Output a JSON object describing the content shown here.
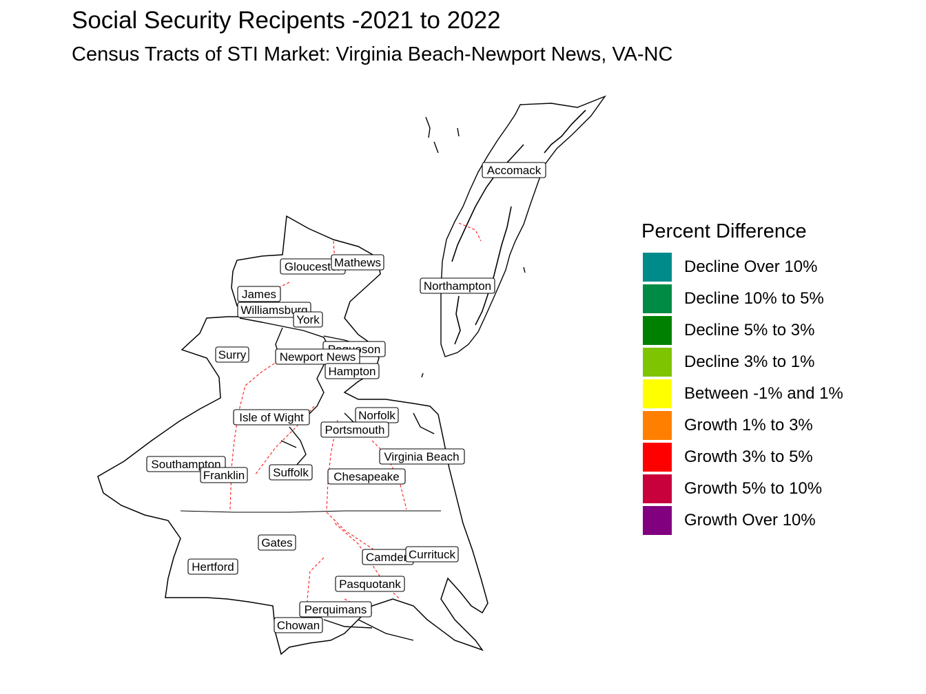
{
  "title": "Social Security Recipents -2021 to 2022",
  "subtitle": "Census Tracts of STI Market: Virginia Beach-Newport News, VA-NC",
  "legend": {
    "title": "Percent Difference",
    "items": [
      {
        "label": "Decline Over 10%",
        "color": "#008B8B"
      },
      {
        "label": "Decline 10% to 5%",
        "color": "#008B45"
      },
      {
        "label": "Decline 5% to 3%",
        "color": "#008000"
      },
      {
        "label": "Decline 3% to 1%",
        "color": "#7FC400"
      },
      {
        "label": "Between -1% and 1%",
        "color": "#FFFF00"
      },
      {
        "label": "Growth 1% to 3%",
        "color": "#FF7F00"
      },
      {
        "label": "Growth 3% to 5%",
        "color": "#FF0000"
      },
      {
        "label": "Growth 5% to 10%",
        "color": "#C8003C"
      },
      {
        "label": "Growth Over 10%",
        "color": "#800080"
      }
    ]
  },
  "counties": {
    "accomack": "Accomack",
    "northampton": "Northampton",
    "gloucester": "Gloucester",
    "mathews": "Mathews",
    "james": "James",
    "williamsburg": "Williamsburg",
    "york": "York",
    "surry": "Surry",
    "poquoson": "Poquoson",
    "newport_news": "Newport News",
    "hampton": "Hampton",
    "isle_of_wight": "Isle of Wight",
    "norfolk": "Norfolk",
    "portsmouth": "Portsmouth",
    "virginia_beach": "Virginia Beach",
    "southampton": "Southampton",
    "franklin": "Franklin",
    "suffolk": "Suffolk",
    "chesapeake": "Chesapeake",
    "gates": "Gates",
    "camden": "Camden",
    "currituck": "Currituck",
    "hertford": "Hertford",
    "pasquotank": "Pasquotank",
    "perquimans": "Perquimans",
    "chowan": "Chowan"
  },
  "map_colors": {
    "outline": "#000000",
    "state_border": "#000000",
    "county_border": "#FF0000",
    "highlight_tract": "#FF7F00"
  }
}
